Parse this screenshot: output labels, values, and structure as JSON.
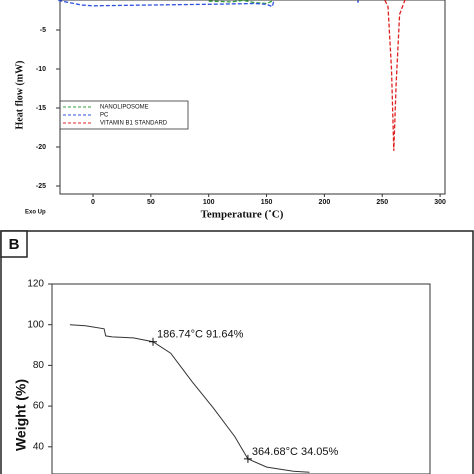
{
  "chart_data": [
    {
      "type": "line",
      "y_label": "Heat flow (mW)",
      "x_label": "Temperature (˚C)",
      "corner_note": "Exo Up",
      "xlim": [
        -30,
        305
      ],
      "ylim": [
        -26,
        1
      ],
      "xticks": [
        0,
        50,
        100,
        150,
        200,
        250,
        300
      ],
      "yticks": [
        -5,
        -10,
        -15,
        -20,
        -25
      ],
      "legend": "lower left",
      "series": [
        {
          "name": "NANOLIPOSOME",
          "color": "#2e9e3a",
          "x": [
            100,
            120,
            130,
            140,
            150,
            155,
            157
          ],
          "values": [
            -1.3,
            -1.4,
            -1.2,
            -1.5,
            -1.6,
            -1.3,
            -0.5
          ]
        },
        {
          "name": "PC",
          "color": "#3050e0",
          "x": [
            -30,
            -10,
            0,
            50,
            100,
            140,
            150,
            155,
            158,
            null,
            228,
            229,
            230
          ],
          "values": [
            -1.2,
            -1.8,
            -1.9,
            -1.8,
            -1.7,
            -1.6,
            -1.7,
            -2.0,
            -0.3,
            null,
            -0.5,
            -1.5,
            -0.5
          ]
        },
        {
          "name": "VITAMIN B1 STANDARD",
          "color": "#e02020",
          "x": [
            250,
            255,
            258,
            260,
            262,
            265,
            270,
            275
          ],
          "values": [
            -0.5,
            -2,
            -10,
            -20.5,
            -12,
            -3,
            -1,
            -0.5
          ]
        }
      ]
    },
    {
      "type": "line",
      "panel_label": "B",
      "y_label": "Weight (%)",
      "xlim": [
        0,
        700
      ],
      "ylim": [
        0,
        120
      ],
      "yticks": [
        40,
        60,
        80,
        100,
        120
      ],
      "series": [
        {
          "color": "#333333",
          "x": [
            31,
            60,
            95,
            98,
            110,
            150,
            186.74,
            220,
            260,
            300,
            340,
            364.68,
            400,
            450,
            480
          ],
          "values": [
            100,
            99.5,
            98,
            94.5,
            94,
            93.5,
            91.64,
            86,
            72,
            59,
            45,
            34.05,
            30,
            28,
            27.5
          ]
        }
      ],
      "annotations": [
        {
          "x": 186.74,
          "y": 91.64,
          "label": "186.74°C 91.64%"
        },
        {
          "x": 364.68,
          "y": 34.05,
          "label": "364.68°C 34.05%"
        }
      ]
    }
  ]
}
